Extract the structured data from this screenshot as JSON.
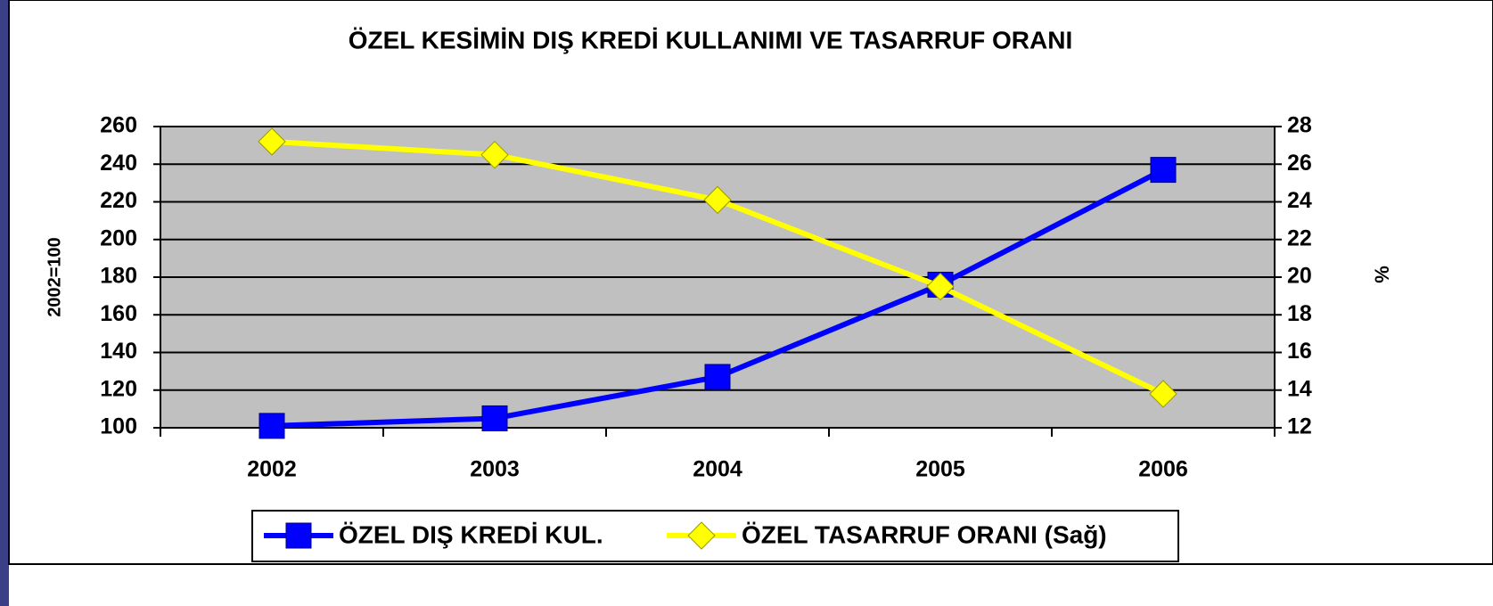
{
  "chart_data": {
    "type": "line",
    "title": "ÖZEL KESİMİN DIŞ KREDİ KULLANIMI VE TASARRUF ORANI",
    "ylabel": "2002=100",
    "y2label": "%",
    "categories": [
      "2002",
      "2003",
      "2004",
      "2005",
      "2006"
    ],
    "series": [
      {
        "name": "ÖZEL DIŞ KREDİ KUL.",
        "color": "#0000ff",
        "marker": "square",
        "axis": "y",
        "values": [
          101,
          105,
          127,
          176,
          237
        ]
      },
      {
        "name": "ÖZEL TASARRUF ORANI (Sağ)",
        "color": "#ffff00",
        "marker": "diamond",
        "axis": "y2",
        "values": [
          27.2,
          26.5,
          24.1,
          19.5,
          13.8
        ]
      }
    ],
    "ylim": [
      100,
      260
    ],
    "yticks": [
      100,
      120,
      140,
      160,
      180,
      200,
      220,
      240,
      260
    ],
    "y2lim": [
      12,
      28
    ],
    "y2ticks": [
      12,
      14,
      16,
      18,
      20,
      22,
      24,
      26,
      28
    ],
    "grid": true,
    "legend": "bottom"
  }
}
